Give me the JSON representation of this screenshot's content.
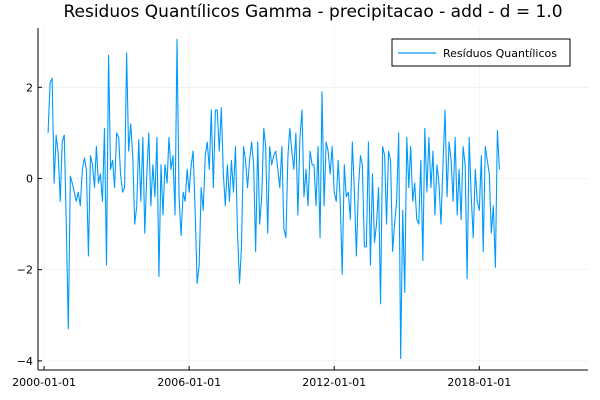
{
  "chart_data": {
    "type": "line",
    "title": "Residuos Quantílicos Gamma - precipitacao - add - d = 1.0",
    "xlabel": "",
    "ylabel": "",
    "x_start": "2000-03-01",
    "x_step": "month",
    "xlim": [
      "1999-10-01",
      "2022-07-01"
    ],
    "ylim": [
      -4.2,
      3.3
    ],
    "x_ticks": [
      {
        "date": "2000-01-01",
        "label": "2000-01-01"
      },
      {
        "date": "2006-01-01",
        "label": "2006-01-01"
      },
      {
        "date": "2012-01-01",
        "label": "2012-01-01"
      },
      {
        "date": "2018-01-01",
        "label": "2018-01-01"
      }
    ],
    "y_ticks": [
      {
        "value": 2,
        "label": "2"
      },
      {
        "value": 0,
        "label": "0"
      },
      {
        "value": -2,
        "label": "−2"
      },
      {
        "value": -4,
        "label": "−4"
      }
    ],
    "grid": true,
    "legend": {
      "position": "top-right"
    },
    "series": [
      {
        "name": "Resíduos Quantílicos",
        "color": "#009AFA",
        "values": [
          1.0,
          2.1,
          2.2,
          -0.1,
          0.95,
          0.55,
          -0.5,
          0.8,
          0.95,
          -1.0,
          -3.3,
          0.05,
          -0.1,
          -0.3,
          -0.5,
          -0.3,
          -0.6,
          0.2,
          0.45,
          0.2,
          -1.7,
          0.5,
          0.3,
          -0.2,
          0.7,
          -0.1,
          0.1,
          -0.5,
          1.1,
          -1.9,
          2.7,
          0.2,
          0.4,
          -0.2,
          1.0,
          0.9,
          0.1,
          -0.3,
          -0.2,
          2.75,
          0.6,
          1.2,
          0.5,
          -1.0,
          -0.6,
          0.85,
          -0.5,
          0.9,
          -1.2,
          0.1,
          1.0,
          -0.6,
          0.3,
          -0.4,
          0.9,
          -2.15,
          0.3,
          -0.8,
          0.3,
          -0.1,
          0.9,
          0.2,
          0.5,
          -0.8,
          3.05,
          -0.4,
          -1.25,
          -0.3,
          -0.5,
          0.2,
          -0.3,
          0.3,
          0.6,
          -0.7,
          -2.3,
          -1.9,
          -0.2,
          -0.7,
          0.5,
          0.8,
          0.2,
          1.5,
          -0.2,
          1.5,
          1.5,
          0.6,
          1.55,
          0.1,
          -0.6,
          0.3,
          -0.5,
          0.4,
          -0.3,
          0.7,
          -1.2,
          -2.3,
          -1.5,
          0.7,
          0.4,
          -0.2,
          0.4,
          0.8,
          0.3,
          -1.6,
          0.8,
          -1.0,
          -0.4,
          1.1,
          0.7,
          -1.2,
          0.7,
          0.3,
          0.5,
          0.6,
          0.2,
          -0.2,
          0.7,
          -1.1,
          -1.3,
          0.5,
          1.1,
          0.6,
          0.2,
          1.0,
          -0.8,
          0.9,
          1.5,
          -0.4,
          0.2,
          -0.6,
          0.6,
          0.3,
          0.3,
          -0.6,
          0.7,
          -1.3,
          1.9,
          -0.6,
          0.8,
          0.6,
          0.1,
          0.7,
          -0.3,
          -0.5,
          0.4,
          -0.5,
          -2.1,
          0.3,
          -0.4,
          -0.3,
          -0.9,
          0.8,
          -0.3,
          -1.7,
          -0.2,
          0.5,
          0.3,
          -1.5,
          -1.5,
          0.8,
          -1.9,
          0.1,
          -1.4,
          -1.0,
          -0.2,
          -2.75,
          0.7,
          0.5,
          -1.0,
          0.6,
          0.4,
          -1.6,
          -1.0,
          -0.5,
          1.0,
          -3.95,
          -0.7,
          -2.5,
          0.9,
          -0.2,
          0.7,
          -0.5,
          -0.1,
          -0.9,
          -1.0,
          0.4,
          -1.8,
          1.1,
          -0.3,
          0.9,
          -0.2,
          0.6,
          -0.8,
          0.3,
          -0.1,
          -1.0,
          0.3,
          1.5,
          -0.4,
          0.8,
          0.4,
          -0.5,
          0.9,
          -0.8,
          0.2,
          -0.9,
          0.7,
          0.3,
          -2.2,
          0.9,
          -0.4,
          -1.3,
          0.2,
          -0.5,
          -0.7,
          0.5,
          -1.6,
          0.7,
          0.4,
          0.1,
          -1.2,
          -0.6,
          -1.95,
          1.05,
          0.2
        ]
      }
    ]
  }
}
